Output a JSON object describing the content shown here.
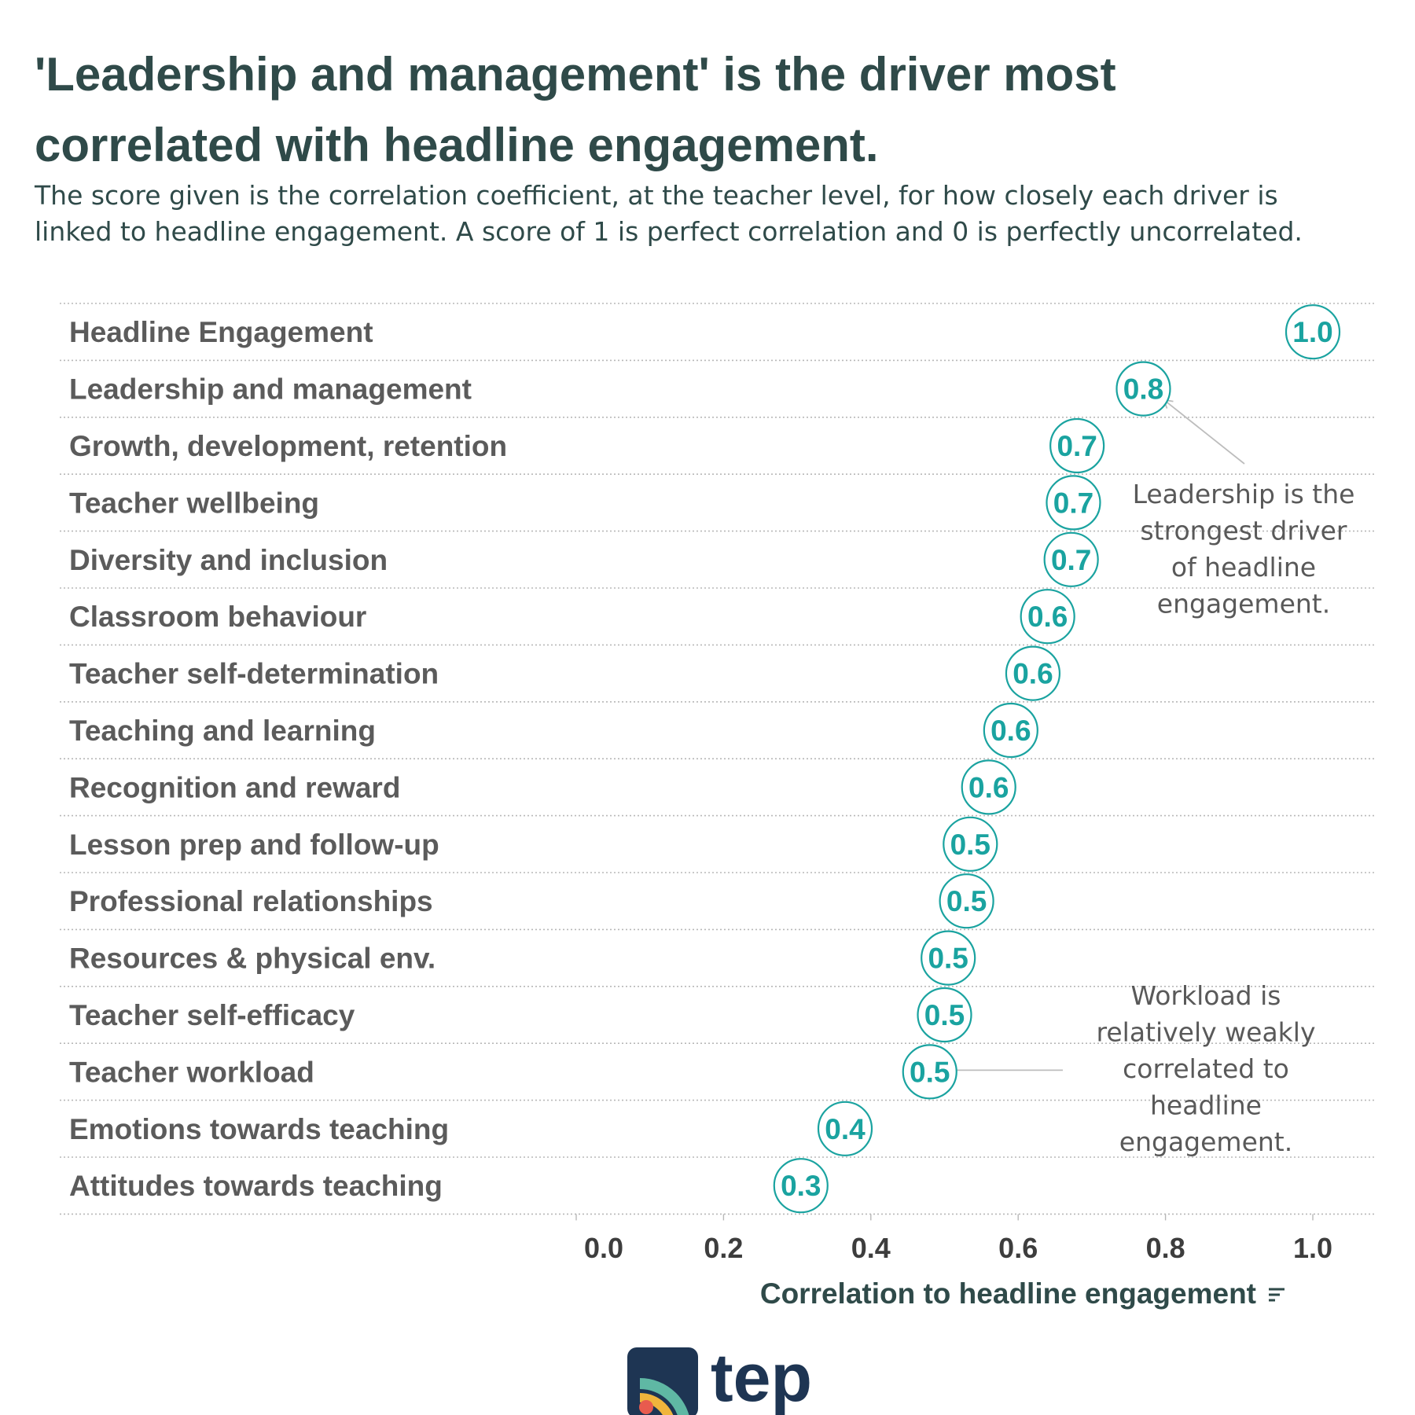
{
  "header": {
    "title_line1": "'Leadership and management' is the driver most",
    "title_line2": "correlated with headline engagement.",
    "subtitle_line1": "The score given is the correlation coefficient, at the teacher level, for how closely each driver is",
    "subtitle_line2": "linked to headline engagement. A score of 1 is perfect correlation and 0 is perfectly uncorrelated."
  },
  "chart_data": {
    "type": "scatter",
    "title": "'Leadership and management' is the driver most correlated with headline engagement.",
    "xlabel": "Correlation to headline engagement",
    "xlim": [
      0.0,
      1.0
    ],
    "xticks": [
      "0.0",
      "0.2",
      "0.4",
      "0.6",
      "0.8",
      "1.0"
    ],
    "categories": [
      "Headline Engagement",
      "Leadership and management",
      "Growth, development, retention",
      "Teacher wellbeing",
      "Diversity and inclusion",
      "Classroom behaviour",
      "Teacher self-determination",
      "Teaching and learning",
      "Recognition and reward",
      "Lesson prep and follow-up",
      "Professional relationships",
      "Resources & physical env.",
      "Teacher self-efficacy",
      "Teacher workload",
      "Emotions towards teaching",
      "Attitudes towards teaching"
    ],
    "values": [
      1.0,
      0.77,
      0.68,
      0.675,
      0.672,
      0.64,
      0.62,
      0.59,
      0.56,
      0.535,
      0.53,
      0.505,
      0.5,
      0.48,
      0.365,
      0.305
    ],
    "labels": [
      "1.0",
      "0.8",
      "0.7",
      "0.7",
      "0.7",
      "0.6",
      "0.6",
      "0.6",
      "0.6",
      "0.5",
      "0.5",
      "0.5",
      "0.5",
      "0.5",
      "0.4",
      "0.3"
    ],
    "grid": true,
    "annotations": [
      {
        "target_index": 1,
        "lines": [
          "Leadership is the",
          "strongest driver",
          "of headline",
          "engagement."
        ]
      },
      {
        "target_index": 13,
        "lines": [
          "Workload is",
          "relatively weakly",
          "correlated to",
          "headline",
          "engagement."
        ]
      }
    ],
    "colors": {
      "bubble": "#1aa3a0",
      "grid": "#b8b8b8",
      "label": "#5b5b5b",
      "title": "#2f4a49"
    }
  },
  "logo": {
    "text": "tep",
    "colors": {
      "tile": "#1e3553",
      "arc_outer": "#5fb8a4",
      "arc_middle": "#f0b53c",
      "dot": "#e85b4e"
    }
  }
}
